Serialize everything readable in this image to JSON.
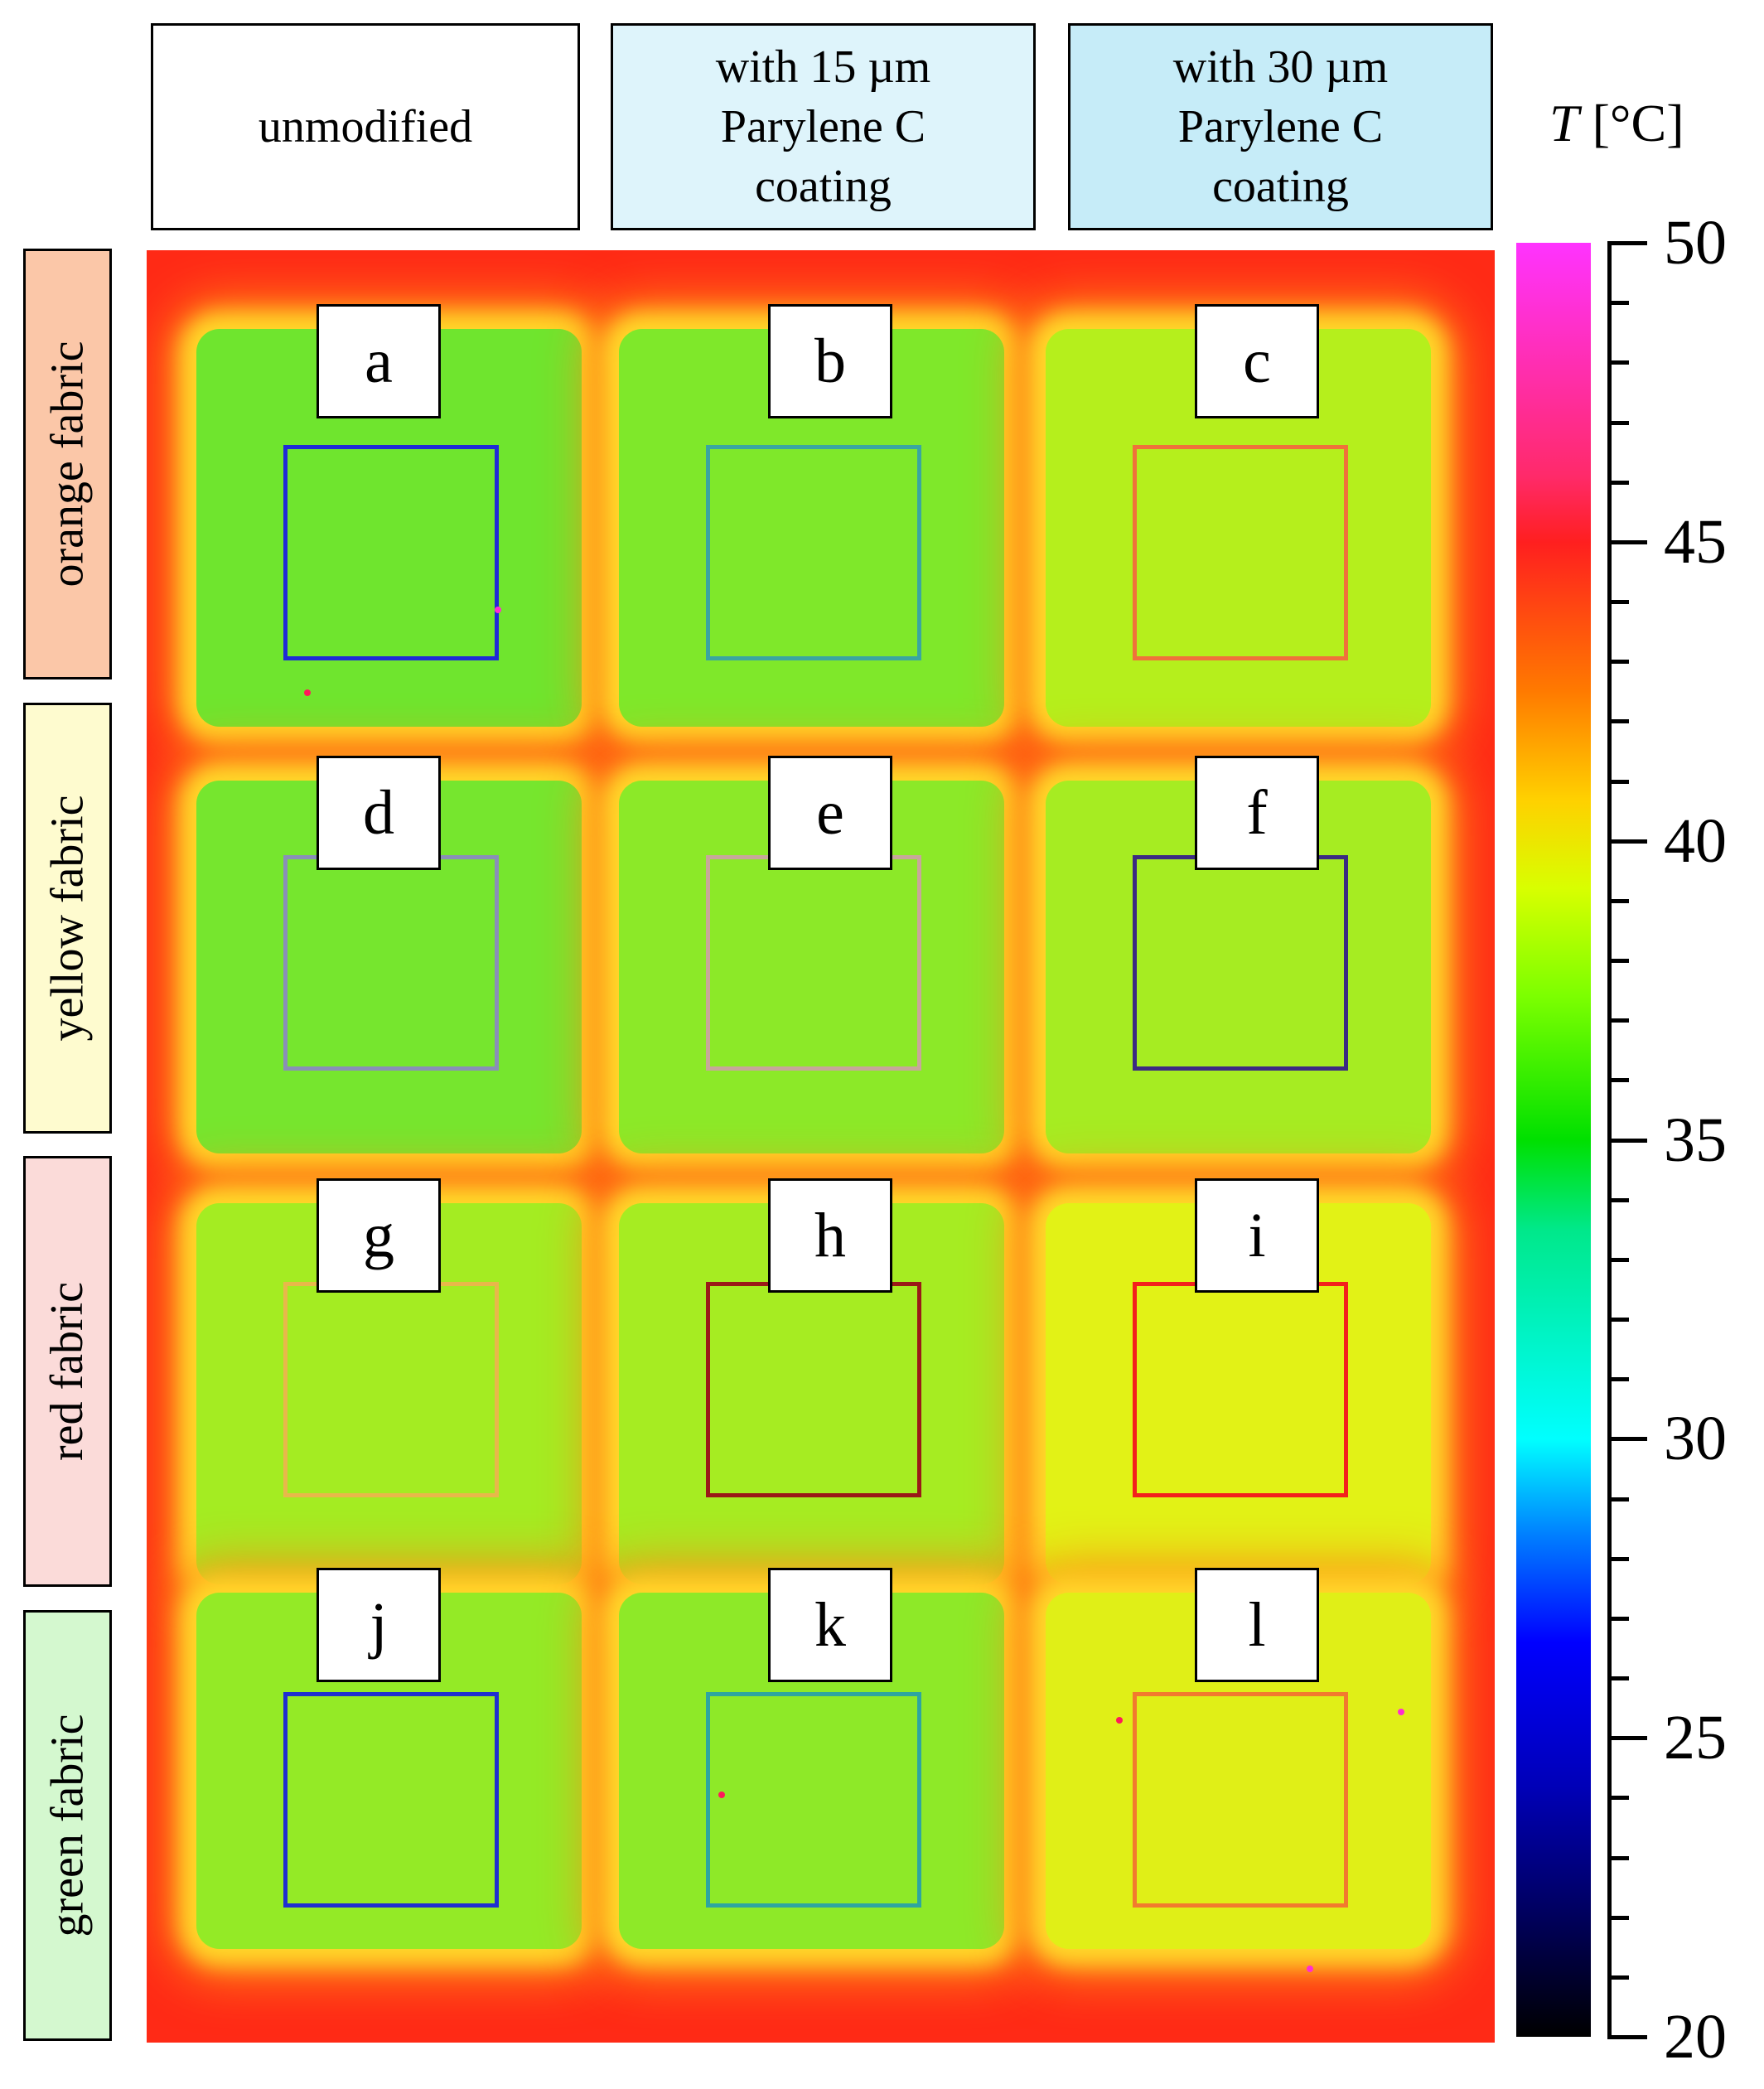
{
  "column_headers": [
    {
      "line1": "unmodified"
    },
    {
      "line1": "with 15 µm",
      "line2": "Parylene C",
      "line3": "coating"
    },
    {
      "line1": "with 30 µm",
      "line2": "Parylene C",
      "line3": "coating"
    }
  ],
  "row_headers": [
    "orange fabric",
    "yellow fabric",
    "red fabric",
    "green fabric"
  ],
  "colorbar": {
    "symbol": "T",
    "unit": "[°C]",
    "min": 20,
    "max": 50,
    "tick_labels": [
      "50",
      "45",
      "40",
      "35",
      "30",
      "25",
      "20"
    ],
    "tick_values": [
      50,
      45,
      40,
      35,
      30,
      25,
      20
    ]
  },
  "samples": [
    {
      "label": "a",
      "fabric": "orange fabric",
      "coating": "unmodified",
      "fill_color": "#6fe52e",
      "roi_color": "#1f2bd6"
    },
    {
      "label": "b",
      "fabric": "orange fabric",
      "coating": "with 15 µm Parylene C coating",
      "fill_color": "#7fe82a",
      "roi_color": "#3aa6a0"
    },
    {
      "label": "c",
      "fabric": "orange fabric",
      "coating": "with 30 µm Parylene C coating",
      "fill_color": "#b5ef1c",
      "roi_color": "#f0723a"
    },
    {
      "label": "d",
      "fabric": "yellow fabric",
      "coating": "unmodified",
      "fill_color": "#76e62e",
      "roi_color": "#8a8fb8"
    },
    {
      "label": "e",
      "fabric": "yellow fabric",
      "coating": "with 15 µm Parylene C coating",
      "fill_color": "#8ce928",
      "roi_color": "#c8a79a"
    },
    {
      "label": "f",
      "fabric": "yellow fabric",
      "coating": "with 30 µm Parylene C coating",
      "fill_color": "#a6ec22",
      "roi_color": "#3b2a82"
    },
    {
      "label": "g",
      "fabric": "red fabric",
      "coating": "unmodified",
      "fill_color": "#a4ec22",
      "roi_color": "#e8b84a"
    },
    {
      "label": "h",
      "fabric": "red fabric",
      "coating": "with 15 µm Parylene C coating",
      "fill_color": "#a6ec22",
      "roi_color": "#9a1a18"
    },
    {
      "label": "i",
      "fabric": "red fabric",
      "coating": "with 30 µm Parylene C coating",
      "fill_color": "#e2f216",
      "roi_color": "#f3211c"
    },
    {
      "label": "j",
      "fabric": "green fabric",
      "coating": "unmodified",
      "fill_color": "#94ea26",
      "roi_color": "#1f2fd0"
    },
    {
      "label": "k",
      "fabric": "green fabric",
      "coating": "with 15 µm Parylene C coating",
      "fill_color": "#8ee928",
      "roi_color": "#2ea5a0"
    },
    {
      "label": "l",
      "fabric": "green fabric",
      "coating": "with 30 µm Parylene C coating",
      "fill_color": "#e0ef17",
      "roi_color": "#f27a2e"
    }
  ]
}
